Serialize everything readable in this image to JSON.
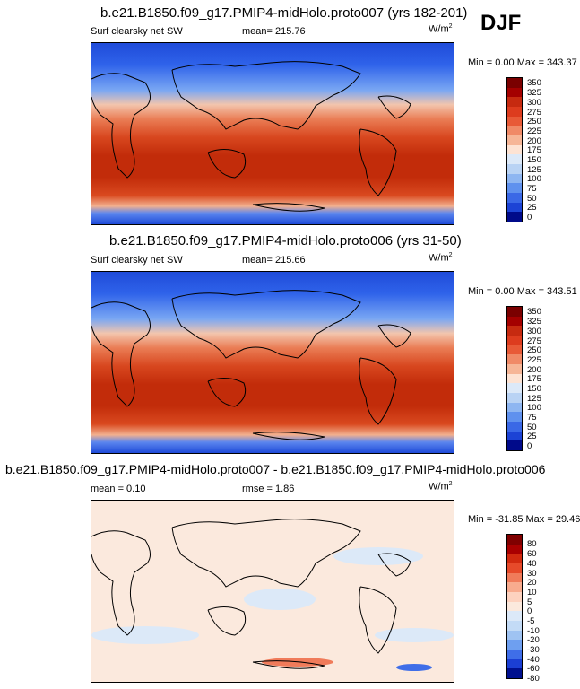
{
  "season": "DJF",
  "units_base": "W/m",
  "units_exp": "2",
  "panels": [
    {
      "title": "b.e21.B1850.f09_g17.PMIP4-midHolo.proto007 (yrs 182-201)",
      "field": "Surf clearsky net SW",
      "mean_text": "mean= 215.76",
      "minmax_text": "Min =   0.00 Max = 343.37",
      "colorbar_labels": [
        "350",
        "325",
        "300",
        "275",
        "250",
        "225",
        "200",
        "175",
        "150",
        "125",
        "100",
        "75",
        "50",
        "25",
        "0"
      ]
    },
    {
      "title": "b.e21.B1850.f09_g17.PMIP4-midHolo.proto006 (yrs 31-50)",
      "field": "Surf clearsky net SW",
      "mean_text": "mean= 215.66",
      "minmax_text": "Min =   0.00 Max = 343.51",
      "colorbar_labels": [
        "350",
        "325",
        "300",
        "275",
        "250",
        "225",
        "200",
        "175",
        "150",
        "125",
        "100",
        "75",
        "50",
        "25",
        "0"
      ]
    },
    {
      "title": "b.e21.B1850.f09_g17.PMIP4-midHolo.proto007 - b.e21.B1850.f09_g17.PMIP4-midHolo.proto006",
      "mean_text": "mean =   0.10",
      "rmse_text": "rmse =   1.86",
      "minmax_text": "Min = -31.85 Max = 29.46",
      "colorbar_labels": [
        "80",
        "60",
        "40",
        "30",
        "20",
        "10",
        "5",
        "0",
        "-5",
        "-10",
        "-20",
        "-30",
        "-40",
        "-60",
        "-80"
      ]
    }
  ],
  "colors": {
    "abs_scale": [
      "#f5ccb8",
      "#f2b095",
      "#ee9272",
      "#e87452",
      "#e15535",
      "#d63a1c",
      "#c52a10",
      "#b21c05",
      "#9e0d00",
      "#800000",
      "#7a0000",
      "#6a0000",
      "#5a0000",
      "#4d0000",
      "#400000"
    ],
    "div_scale": [
      "#800000",
      "#a90000",
      "#d12a0f",
      "#e64a2a",
      "#f07b5a",
      "#f8ab8e",
      "#fdd2bf",
      "#fbe9dd",
      "#dce9f8",
      "#c3dbf6",
      "#9fc3f2",
      "#6e9ff0",
      "#3f6ee8",
      "#1b3fd4",
      "#00108f"
    ]
  }
}
